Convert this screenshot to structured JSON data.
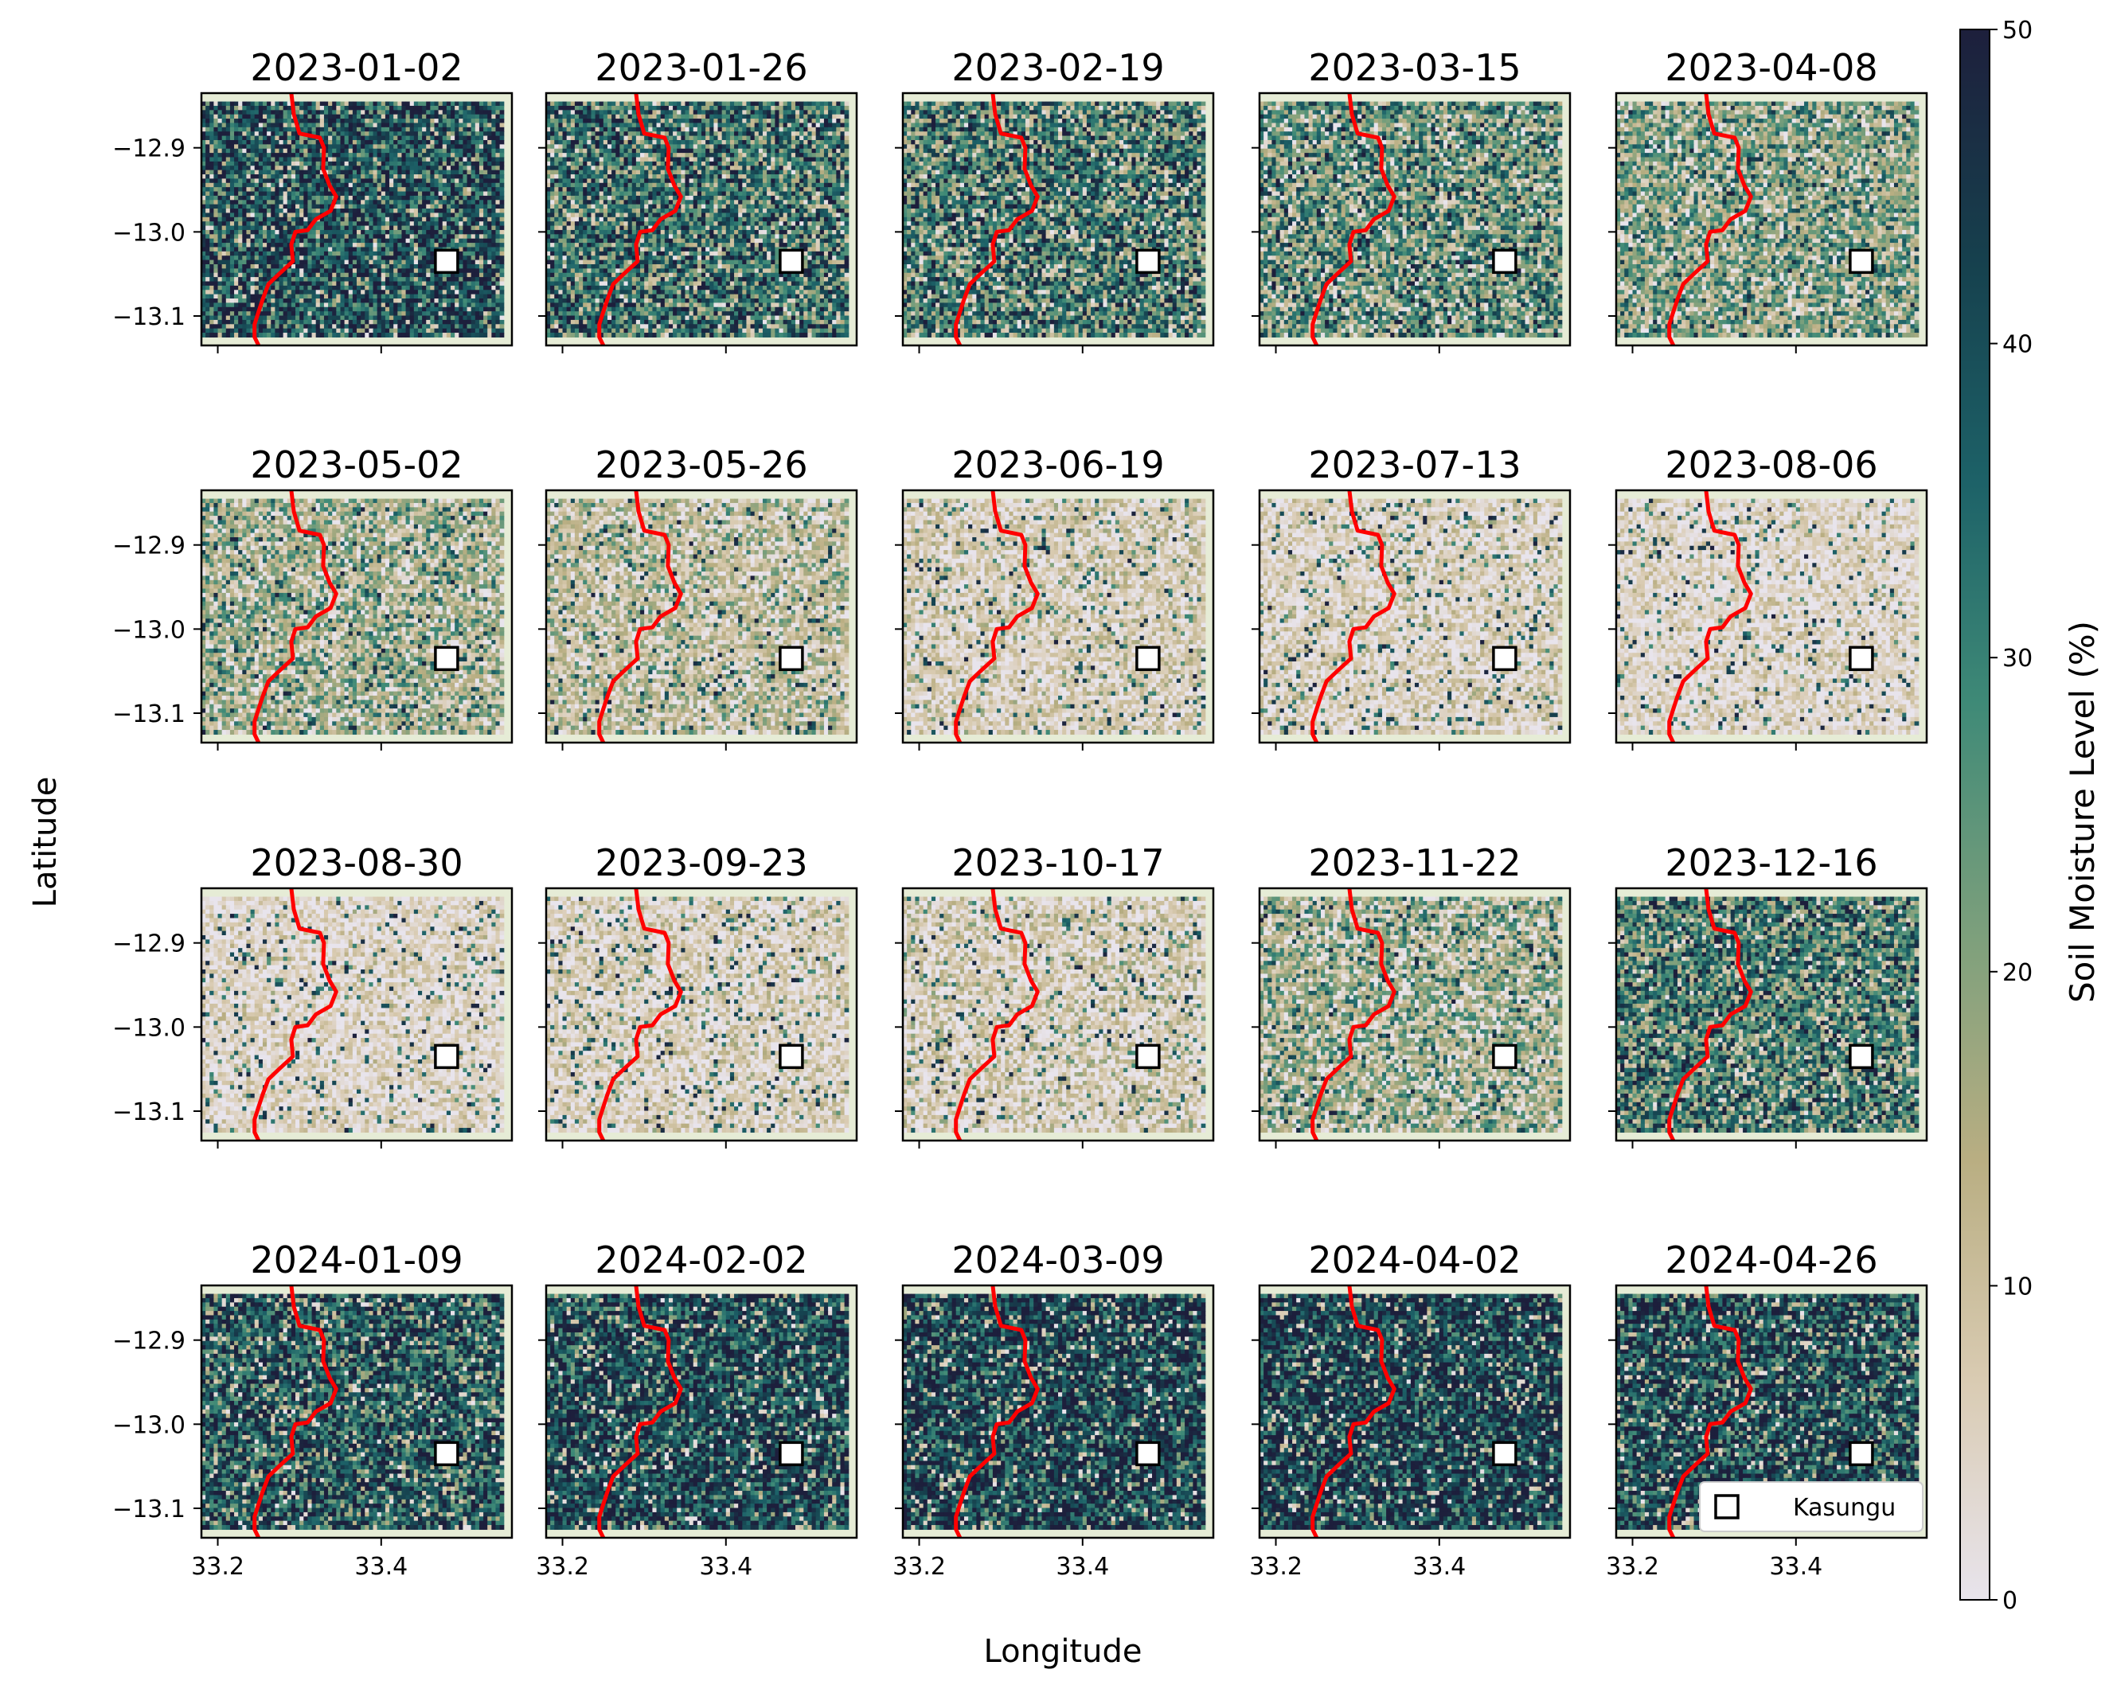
{
  "chart_data": {
    "type": "heatmap",
    "xlabel": "Longitude",
    "ylabel": "Latitude",
    "x_ticks": [
      33.2,
      33.4
    ],
    "x_tick_labels": [
      "33.2",
      "33.4"
    ],
    "y_ticks": [
      -12.9,
      -13.0,
      -13.1
    ],
    "y_tick_labels": [
      "−12.9",
      "−13.0",
      "−13.1"
    ],
    "xlim": [
      33.18,
      33.56
    ],
    "ylim": [
      -13.135,
      -12.835
    ],
    "data_extent": {
      "lon": [
        33.18,
        33.55
      ],
      "lat": [
        -13.125,
        -12.845
      ]
    },
    "colorbar": {
      "label": "Soil Moisture Level (%)",
      "vmin": 0,
      "vmax": 50,
      "ticks": [
        0,
        10,
        20,
        30,
        40,
        50
      ],
      "tick_labels": [
        "0",
        "10",
        "20",
        "30",
        "40",
        "50"
      ],
      "colors": [
        "#e8e4ec",
        "#d9cbb2",
        "#b9ae82",
        "#7ea07c",
        "#3f8a77",
        "#1d6268",
        "#16414e",
        "#1d1f3c"
      ]
    },
    "marker": {
      "label": "Kasungu",
      "lon": 33.48,
      "lat": -13.035,
      "shape": "square",
      "color": "#ffffff"
    },
    "boundary": {
      "color": "#ff0000",
      "points": [
        [
          33.29,
          -12.835
        ],
        [
          33.293,
          -12.86
        ],
        [
          33.3,
          -12.883
        ],
        [
          33.325,
          -12.888
        ],
        [
          33.33,
          -12.9
        ],
        [
          33.329,
          -12.925
        ],
        [
          33.337,
          -12.945
        ],
        [
          33.345,
          -12.958
        ],
        [
          33.338,
          -12.975
        ],
        [
          33.32,
          -12.985
        ],
        [
          33.31,
          -12.998
        ],
        [
          33.295,
          -13.0
        ],
        [
          33.29,
          -13.015
        ],
        [
          33.292,
          -13.035
        ],
        [
          33.275,
          -13.05
        ],
        [
          33.262,
          -13.062
        ],
        [
          33.255,
          -13.08
        ],
        [
          33.25,
          -13.095
        ],
        [
          33.245,
          -13.11
        ],
        [
          33.245,
          -13.125
        ],
        [
          33.25,
          -13.135
        ]
      ]
    },
    "panels": [
      {
        "title": "2023-01-02",
        "mean_moisture": 40,
        "spread": 12
      },
      {
        "title": "2023-01-26",
        "mean_moisture": 33,
        "spread": 13
      },
      {
        "title": "2023-02-19",
        "mean_moisture": 31,
        "spread": 13
      },
      {
        "title": "2023-03-15",
        "mean_moisture": 26,
        "spread": 13
      },
      {
        "title": "2023-04-08",
        "mean_moisture": 21,
        "spread": 12
      },
      {
        "title": "2023-05-02",
        "mean_moisture": 14,
        "spread": 10
      },
      {
        "title": "2023-05-26",
        "mean_moisture": 10,
        "spread": 8
      },
      {
        "title": "2023-06-19",
        "mean_moisture": 6,
        "spread": 6
      },
      {
        "title": "2023-07-13",
        "mean_moisture": 5,
        "spread": 6
      },
      {
        "title": "2023-08-06",
        "mean_moisture": 4,
        "spread": 5
      },
      {
        "title": "2023-08-30",
        "mean_moisture": 4,
        "spread": 5
      },
      {
        "title": "2023-09-23",
        "mean_moisture": 5,
        "spread": 6
      },
      {
        "title": "2023-10-17",
        "mean_moisture": 6,
        "spread": 7
      },
      {
        "title": "2023-11-22",
        "mean_moisture": 14,
        "spread": 11
      },
      {
        "title": "2023-12-16",
        "mean_moisture": 30,
        "spread": 13
      },
      {
        "title": "2024-01-09",
        "mean_moisture": 38,
        "spread": 12
      },
      {
        "title": "2024-02-02",
        "mean_moisture": 41,
        "spread": 11
      },
      {
        "title": "2024-03-09",
        "mean_moisture": 42,
        "spread": 11
      },
      {
        "title": "2024-04-02",
        "mean_moisture": 43,
        "spread": 11
      },
      {
        "title": "2024-04-26",
        "mean_moisture": 40,
        "spread": 12
      }
    ],
    "legend_position": "lower-right of last panel"
  }
}
